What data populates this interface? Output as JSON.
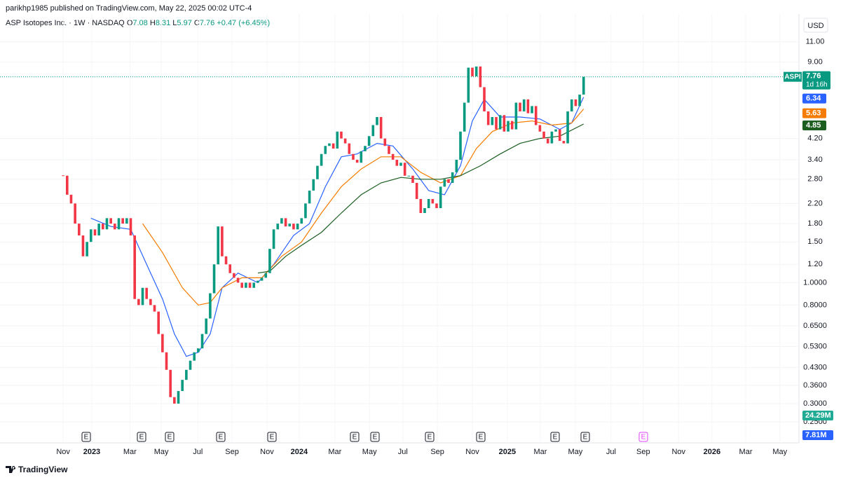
{
  "header": {
    "publisher": "parikhp1985 published on TradingView.com, May 22, 2025 00:02 UTC-4",
    "brand": "TradingView"
  },
  "legend": {
    "symbol": "ASP Isotopes Inc. · 1W · NASDAQ",
    "open_label": "O",
    "open": 7.08,
    "high_label": "H",
    "high": 8.31,
    "low_label": "L",
    "low": 5.97,
    "close_label": "C",
    "change": "+0.47",
    "change_pct": "(+6.45%)"
  },
  "chart_data": {
    "type": "candlestick",
    "ticker": "ASPI",
    "currency": "USD",
    "countdown": "1d 16h",
    "earnings_label": "E",
    "volume_labels": [
      "24.29M",
      "7.81M"
    ],
    "log_scale": true,
    "grid": true,
    "up_color": "#089981",
    "down_color": "#f23645",
    "values": [
      2.9,
      2.4,
      2.2,
      1.8,
      1.6,
      1.3,
      1.5,
      1.7,
      1.6,
      1.8,
      1.7,
      1.9,
      1.8,
      1.7,
      1.9,
      1.8,
      1.9,
      1.6,
      0.85,
      0.8,
      0.95,
      0.85,
      0.8,
      0.75,
      0.6,
      0.5,
      0.42,
      0.32,
      0.3,
      0.34,
      0.38,
      0.42,
      0.46,
      0.5,
      0.52,
      0.6,
      0.7,
      0.9,
      1.2,
      1.75,
      1.3,
      1.2,
      1.1,
      1.05,
      1.0,
      0.95,
      1.0,
      0.95,
      1.0,
      1.02,
      1.05,
      1.1,
      1.4,
      1.7,
      1.8,
      1.9,
      1.75,
      1.8,
      1.7,
      1.8,
      1.9,
      2.2,
      2.5,
      2.8,
      3.2,
      3.6,
      3.9,
      4.0,
      3.8,
      4.5,
      4.2,
      4.0,
      3.6,
      3.4,
      3.3,
      3.7,
      3.9,
      4.3,
      4.8,
      5.2,
      4.2,
      3.9,
      3.6,
      3.4,
      3.2,
      3.3,
      2.9,
      2.9,
      2.7,
      2.3,
      2.0,
      2.1,
      2.3,
      2.2,
      2.1,
      2.6,
      2.8,
      2.7,
      3.0,
      3.4,
      4.5,
      6.0,
      8.5,
      7.8,
      8.6,
      7.0,
      5.5,
      4.8,
      5.2,
      4.6,
      5.3,
      4.5,
      5.0,
      4.6,
      6.0,
      5.5,
      6.2,
      5.4,
      5.8,
      4.8,
      4.5,
      4.2,
      4.0,
      4.5,
      4.6,
      4.1,
      4.0,
      5.5,
      6.2,
      5.8,
      6.5,
      7.76
    ],
    "moving_averages": [
      {
        "color": "#2962ff",
        "x": [
          7,
          12,
          17,
          21,
          25,
          28,
          31,
          34,
          37,
          40,
          44,
          49,
          53,
          58,
          62,
          66,
          70,
          74,
          79,
          83,
          88,
          92,
          96,
          100,
          103,
          106,
          110,
          115,
          120,
          125,
          128,
          131
        ],
        "values": [
          1.9,
          1.75,
          1.7,
          1.2,
          0.85,
          0.6,
          0.48,
          0.5,
          0.6,
          0.95,
          1.1,
          1.0,
          1.2,
          1.6,
          1.8,
          2.6,
          3.5,
          3.6,
          4.0,
          3.9,
          3.1,
          2.5,
          2.4,
          3.2,
          5.0,
          6.2,
          5.2,
          5.2,
          5.1,
          4.6,
          4.9,
          6.34
        ]
      },
      {
        "color": "#f57c00",
        "x": [
          20,
          25,
          30,
          34,
          37,
          40,
          45,
          50,
          55,
          60,
          65,
          70,
          75,
          80,
          85,
          90,
          95,
          100,
          104,
          108,
          113,
          118,
          123,
          128,
          131
        ],
        "values": [
          1.8,
          1.35,
          0.95,
          0.8,
          0.82,
          0.95,
          1.05,
          1.05,
          1.3,
          1.5,
          2.0,
          2.6,
          3.1,
          3.5,
          3.5,
          3.0,
          2.7,
          2.9,
          3.8,
          4.5,
          4.9,
          5.0,
          4.8,
          4.9,
          5.63
        ]
      },
      {
        "color": "#1b5e20",
        "x": [
          49,
          52,
          56,
          60,
          65,
          70,
          75,
          80,
          85,
          90,
          95,
          100,
          105,
          110,
          115,
          120,
          125,
          131
        ],
        "values": [
          1.1,
          1.12,
          1.3,
          1.45,
          1.65,
          2.0,
          2.4,
          2.7,
          2.85,
          2.8,
          2.8,
          2.9,
          3.2,
          3.6,
          4.0,
          4.2,
          4.3,
          4.85
        ]
      }
    ],
    "xlim": [
      -15.9,
      185.2
    ],
    "xticks": [
      {
        "value": 0,
        "label": "Nov"
      },
      {
        "value": 7.2,
        "label": "2023"
      },
      {
        "value": 16.8,
        "label": "Mar"
      },
      {
        "value": 24.7,
        "label": "May"
      },
      {
        "value": 33.9,
        "label": "Jul"
      },
      {
        "value": 42.5,
        "label": "Sep"
      },
      {
        "value": 51.3,
        "label": "Nov"
      },
      {
        "value": 59.4,
        "label": "2024"
      },
      {
        "value": 68.4,
        "label": "Mar"
      },
      {
        "value": 77.1,
        "label": "May"
      },
      {
        "value": 85.5,
        "label": "Jul"
      },
      {
        "value": 94.2,
        "label": "Sep"
      },
      {
        "value": 103,
        "label": "Nov"
      },
      {
        "value": 111.8,
        "label": "2025"
      },
      {
        "value": 120.1,
        "label": "Mar"
      },
      {
        "value": 128.9,
        "label": "May"
      },
      {
        "value": 137.9,
        "label": "Jul"
      },
      {
        "value": 146,
        "label": "Sep"
      },
      {
        "value": 154.9,
        "label": "Nov"
      },
      {
        "value": 163.3,
        "label": "2026"
      },
      {
        "value": 171.8,
        "label": "Mar"
      },
      {
        "value": 180.4,
        "label": "May"
      }
    ],
    "ylim": [
      0.203,
      14.5
    ],
    "yticks": [
      {
        "value": 11,
        "label": "11.00"
      },
      {
        "value": 9,
        "label": "9.00"
      },
      {
        "value": 4.2,
        "label": "4.20"
      },
      {
        "value": 3.4,
        "label": "3.40"
      },
      {
        "value": 2.8,
        "label": "2.80"
      },
      {
        "value": 2.2,
        "label": "2.20"
      },
      {
        "value": 1.8,
        "label": "1.80"
      },
      {
        "value": 1.5,
        "label": "1.50"
      },
      {
        "value": 1.2,
        "label": "1.20"
      },
      {
        "value": 1,
        "label": "1.0000"
      },
      {
        "value": 0.8,
        "label": "0.8000"
      },
      {
        "value": 0.65,
        "label": "0.6500"
      },
      {
        "value": 0.53,
        "label": "0.5300"
      },
      {
        "value": 0.43,
        "label": "0.4300"
      },
      {
        "value": 0.36,
        "label": "0.3600"
      },
      {
        "value": 0.3,
        "label": "0.3000"
      },
      {
        "value": 0.25,
        "label": "0.2500"
      }
    ]
  }
}
